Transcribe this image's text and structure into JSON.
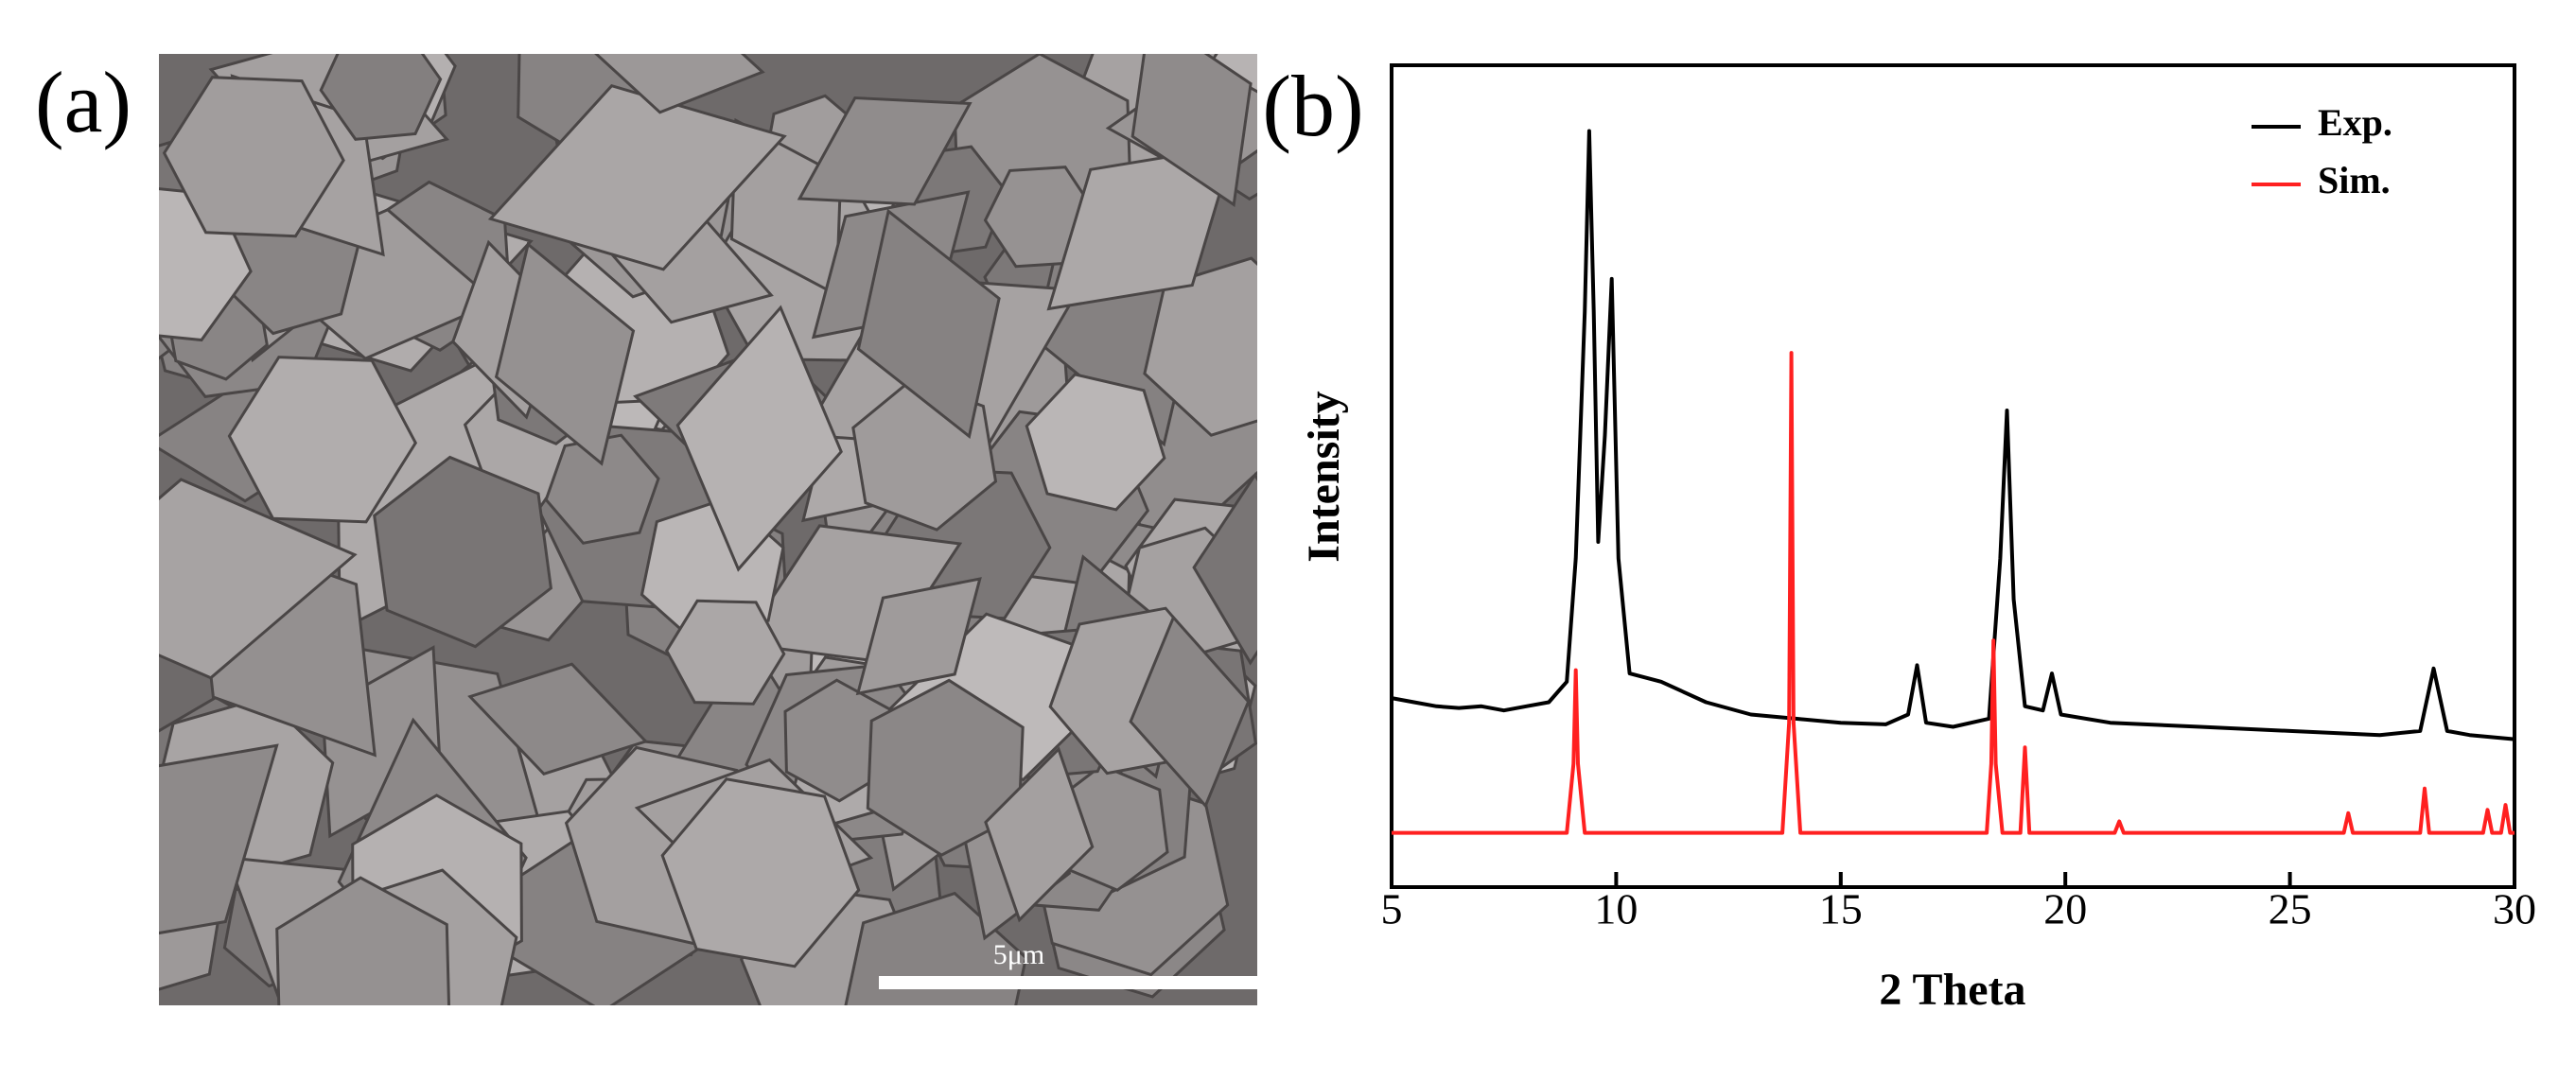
{
  "panel_a": {
    "label": "(a)",
    "scale_bar": "5μm"
  },
  "chart_data": {
    "type": "line",
    "panel_label": "(b)",
    "x_label": "2 Theta",
    "y_label": "Intensity",
    "xlim": [
      5,
      30
    ],
    "xticks": [
      5,
      10,
      15,
      20,
      25,
      30
    ],
    "ylim": [
      0,
      100
    ],
    "legend": "top-right",
    "series": [
      {
        "name": "Exp.",
        "color": "#000000",
        "x": [
          5,
          5.5,
          6,
          6.5,
          7,
          7.5,
          8,
          8.5,
          8.9,
          9.1,
          9.3,
          9.4,
          9.5,
          9.6,
          9.75,
          9.9,
          10.05,
          10.3,
          11,
          12,
          13,
          14,
          15,
          16,
          16.5,
          16.7,
          16.9,
          17.5,
          18.3,
          18.55,
          18.7,
          18.85,
          19.1,
          19.5,
          19.7,
          19.9,
          21,
          23,
          25,
          27,
          27.9,
          28.2,
          28.5,
          29,
          30
        ],
        "values": [
          23,
          22.5,
          22,
          21.8,
          22,
          21.5,
          22,
          22.5,
          25,
          40,
          70,
          92,
          70,
          42,
          55,
          74,
          40,
          26,
          25,
          22.5,
          21,
          20.5,
          20,
          19.8,
          21,
          27,
          20,
          19.5,
          20.5,
          40,
          58,
          35,
          22,
          21.5,
          26,
          21,
          20,
          19.5,
          19,
          18.5,
          19,
          26.6,
          19,
          18.5,
          18
        ]
      },
      {
        "name": "Sim.",
        "color": "#ff2020",
        "x": [
          5,
          8.9,
          9.05,
          9.1,
          9.15,
          9.3,
          13.7,
          13.85,
          13.9,
          13.95,
          14.1,
          18.25,
          18.35,
          18.4,
          18.45,
          18.6,
          19.0,
          19.1,
          19.2,
          21.1,
          21.2,
          21.3,
          26.2,
          26.3,
          26.4,
          27.9,
          28,
          28.1,
          29.3,
          29.4,
          29.5,
          29.7,
          29.8,
          29.9,
          30
        ],
        "values": [
          6.6,
          6.6,
          15,
          26.4,
          15,
          6.6,
          6.6,
          20,
          65,
          20,
          6.6,
          6.6,
          15,
          30,
          15,
          6.6,
          6.6,
          17,
          6.6,
          6.6,
          8,
          6.6,
          6.6,
          9,
          6.6,
          6.6,
          12,
          6.6,
          6.6,
          9.4,
          6.6,
          6.6,
          10,
          6.6,
          6.6
        ]
      }
    ]
  }
}
